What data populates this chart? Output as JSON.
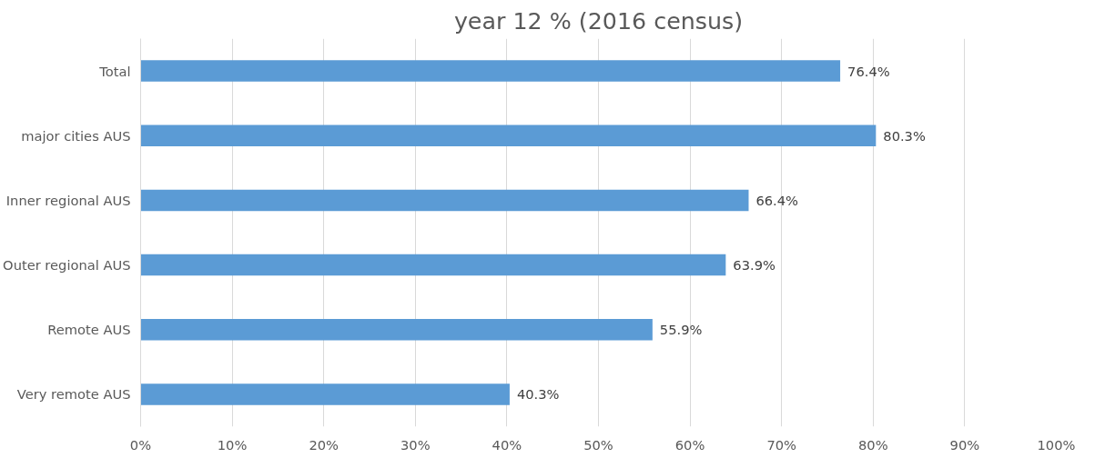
{
  "chart_data": {
    "type": "bar",
    "orientation": "horizontal",
    "title": "year 12 % (2016 census)",
    "categories": [
      "Total",
      "major cities AUS",
      "Inner regional AUS",
      "Outer regional AUS",
      "Remote AUS",
      "Very remote AUS"
    ],
    "values": [
      76.4,
      80.3,
      66.4,
      63.9,
      55.9,
      40.3
    ],
    "value_labels": [
      "76.4%",
      "80.3%",
      "66.4%",
      "63.9%",
      "55.9%",
      "40.3%"
    ],
    "color": "#5b9bd5",
    "xlim": [
      0,
      100
    ],
    "xticks": [
      {
        "value": 0,
        "label": "0%"
      },
      {
        "value": 10,
        "label": "10%"
      },
      {
        "value": 20,
        "label": "20%"
      },
      {
        "value": 30,
        "label": "30%"
      },
      {
        "value": 40,
        "label": "40%"
      },
      {
        "value": 50,
        "label": "50%"
      },
      {
        "value": 60,
        "label": "60%"
      },
      {
        "value": 70,
        "label": "70%"
      },
      {
        "value": 80,
        "label": "80%"
      },
      {
        "value": 90,
        "label": "90%"
      },
      {
        "value": 100,
        "label": "100%"
      }
    ],
    "grid": "x"
  }
}
